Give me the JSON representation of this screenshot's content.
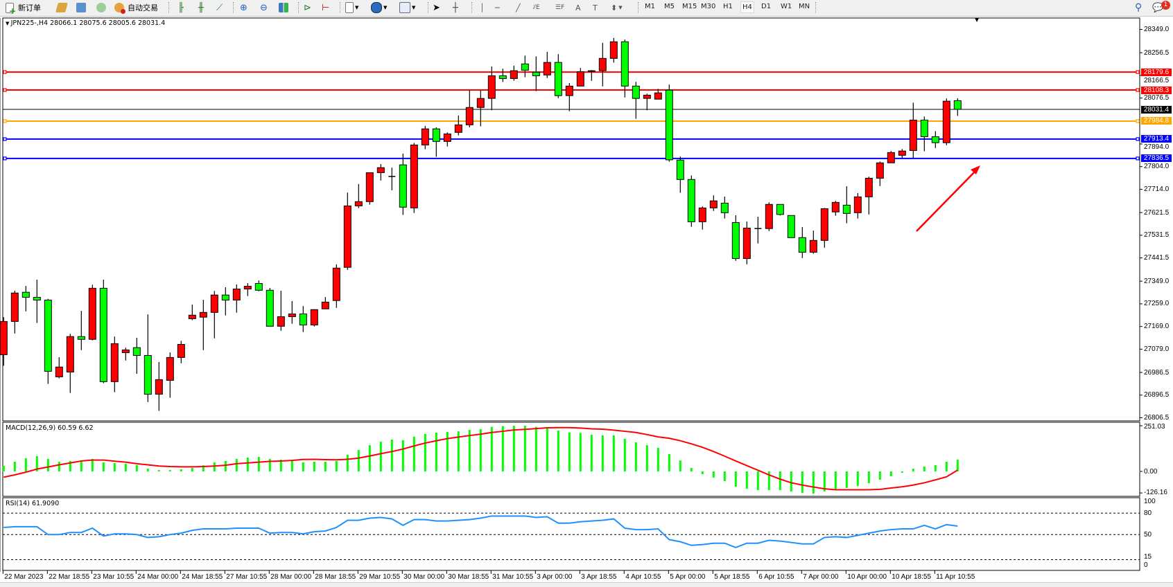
{
  "toolbar": {
    "new_order_label": "新订单",
    "auto_trading_label": "自动交易",
    "icons": [
      "new-order-icon",
      "gold-icon",
      "market-watch-icon",
      "signals-icon",
      "auto-trading-icon",
      "bar-chart-icon",
      "candlestick-icon",
      "line-chart-icon",
      "zoom-in-icon",
      "zoom-out-icon",
      "tile-windows-icon",
      "auto-scroll-icon",
      "chart-shift-icon",
      "new-chart-icon",
      "periods-icon",
      "templates-icon",
      "cursor-icon",
      "crosshair-icon",
      "vertical-line-icon",
      "horizontal-line-icon",
      "trendline-icon",
      "fibonacci-icon",
      "fibo-fan-icon",
      "text-icon",
      "text-label-icon",
      "arrows-icon"
    ],
    "timeframes": [
      "M1",
      "M5",
      "M15",
      "M30",
      "H1",
      "H4",
      "D1",
      "W1",
      "MN"
    ],
    "active_timeframe": "H4",
    "notification_count": "1"
  },
  "chart": {
    "title": "JPN225-,H4  28066.1 28075.6 28005.6 28031.4",
    "symbol": "JPN225-",
    "period": "H4",
    "price_ticks": [
      "28349.0",
      "28256.5",
      "28166.5",
      "28076.5",
      "27894.0",
      "27804.0",
      "27714.0",
      "27621.5",
      "27531.5",
      "27441.5",
      "27349.0",
      "27259.0",
      "27169.0",
      "27079.0",
      "26986.5",
      "26896.5",
      "26806.5"
    ],
    "current_price": {
      "value": "28031.4",
      "color": "#000000"
    },
    "level_lines": [
      {
        "value": "28179.6",
        "color": "#ff0000"
      },
      {
        "value": "28108.3",
        "color": "#ff0000"
      },
      {
        "value": "27984.8",
        "color": "#ffa500"
      },
      {
        "value": "27913.4",
        "color": "#0000ff"
      },
      {
        "value": "27836.5",
        "color": "#0000ff"
      }
    ],
    "bull_color": "#ff0000",
    "bear_color": "#00ff00",
    "annotation_arrow_color": "#ff0000",
    "time_labels": [
      "22 Mar 2023",
      "22 Mar 18:55",
      "23 Mar 10:55",
      "24 Mar 00:00",
      "24 Mar 18:55",
      "27 Mar 10:55",
      "28 Mar 00:00",
      "28 Mar 18:55",
      "29 Mar 10:55",
      "30 Mar 00:00",
      "30 Mar 18:55",
      "31 Mar 10:55",
      "3 Apr 00:00",
      "3 Apr 18:55",
      "4 Apr 10:55",
      "5 Apr 00:00",
      "5 Apr 18:55",
      "6 Apr 10:55",
      "7 Apr 00:00",
      "10 Apr 00:00",
      "10 Apr 18:55",
      "11 Apr 10:55"
    ]
  },
  "macd": {
    "title": "MACD(12,26,9) 60.59 6.62",
    "ticks": [
      "251.03",
      "0.00",
      "-126.16"
    ],
    "hist_color": "#00ff00",
    "signal_color": "#ff0000"
  },
  "rsi": {
    "title": "RSI(14) 61.9090",
    "ticks": [
      "100",
      "80",
      "50",
      "15",
      "0"
    ],
    "line_color": "#1e90ff"
  },
  "chart_data": {
    "type": "candlestick",
    "ohlc": [
      [
        27057,
        27206,
        27013,
        27189
      ],
      [
        27189,
        27311,
        27141,
        27302
      ],
      [
        27305,
        27330,
        27229,
        27285
      ],
      [
        27285,
        27355,
        27183,
        27274
      ],
      [
        27274,
        27279,
        26941,
        26991
      ],
      [
        26969,
        27047,
        26963,
        27008
      ],
      [
        26988,
        27140,
        26905,
        27129
      ],
      [
        27129,
        27231,
        27075,
        27118
      ],
      [
        27118,
        27335,
        27114,
        27321
      ],
      [
        27321,
        27355,
        26944,
        26950
      ],
      [
        26950,
        27129,
        26908,
        27101
      ],
      [
        27065,
        27085,
        27034,
        27076
      ],
      [
        27085,
        27124,
        26981,
        27054
      ],
      [
        27054,
        27217,
        26869,
        26900
      ],
      [
        26900,
        27028,
        26834,
        26958
      ],
      [
        26955,
        27066,
        26886,
        27046
      ],
      [
        27046,
        27112,
        27023,
        27098
      ],
      [
        27200,
        27256,
        27194,
        27214
      ],
      [
        27206,
        27275,
        27075,
        27225
      ],
      [
        27225,
        27310,
        27122,
        27294
      ],
      [
        27294,
        27325,
        27213,
        27274
      ],
      [
        27274,
        27336,
        27224,
        27318
      ],
      [
        27318,
        27341,
        27290,
        27329
      ],
      [
        27340,
        27352,
        27309,
        27313
      ],
      [
        27313,
        27322,
        27170,
        27170
      ],
      [
        27170,
        27311,
        27152,
        27208
      ],
      [
        27208,
        27270,
        27180,
        27219
      ],
      [
        27219,
        27250,
        27147,
        27175
      ],
      [
        27175,
        27238,
        27169,
        27236
      ],
      [
        27239,
        27286,
        27239,
        27266
      ],
      [
        27272,
        27416,
        27243,
        27401
      ],
      [
        27404,
        27701,
        27394,
        27648
      ],
      [
        27648,
        27735,
        27639,
        27665
      ],
      [
        27665,
        27780,
        27653,
        27780
      ],
      [
        27780,
        27814,
        27749,
        27800
      ],
      [
        27765,
        27800,
        27710,
        27765
      ],
      [
        27811,
        27856,
        27612,
        27643
      ],
      [
        27640,
        27898,
        27620,
        27890
      ],
      [
        27890,
        27966,
        27873,
        27954
      ],
      [
        27954,
        27960,
        27843,
        27904
      ],
      [
        27904,
        27940,
        27884,
        27934
      ],
      [
        27940,
        28007,
        27928,
        27970
      ],
      [
        27970,
        28107,
        27960,
        28039
      ],
      [
        28039,
        28107,
        27964,
        28075
      ],
      [
        28075,
        28202,
        28028,
        28165
      ],
      [
        28165,
        28193,
        28140,
        28154
      ],
      [
        28154,
        28205,
        28145,
        28185
      ],
      [
        28212,
        28245,
        28159,
        28187
      ],
      [
        28179,
        28242,
        28104,
        28165
      ],
      [
        28168,
        28260,
        28156,
        28218
      ],
      [
        28218,
        28251,
        28076,
        28086
      ],
      [
        28086,
        28136,
        28024,
        28124
      ],
      [
        28124,
        28196,
        28124,
        28181
      ],
      [
        28182,
        28188,
        28145,
        28185
      ],
      [
        28185,
        28296,
        28123,
        28234
      ],
      [
        28234,
        28315,
        28217,
        28300
      ],
      [
        28300,
        28309,
        28079,
        28124
      ],
      [
        28124,
        28141,
        27994,
        28075
      ],
      [
        28075,
        28094,
        28028,
        28088
      ],
      [
        28072,
        28113,
        28072,
        28097
      ],
      [
        28108,
        28130,
        27824,
        27831
      ],
      [
        27830,
        27844,
        27700,
        27753
      ],
      [
        27753,
        27769,
        27565,
        27585
      ],
      [
        27585,
        27646,
        27554,
        27640
      ],
      [
        27640,
        27690,
        27628,
        27668
      ],
      [
        27659,
        27685,
        27598,
        27621
      ],
      [
        27582,
        27611,
        27430,
        27439
      ],
      [
        27439,
        27586,
        27416,
        27560
      ],
      [
        27558,
        27605,
        27499,
        27558
      ],
      [
        27558,
        27662,
        27548,
        27654
      ],
      [
        27654,
        27654,
        27610,
        27614
      ],
      [
        27610,
        27610,
        27522,
        27522
      ],
      [
        27522,
        27564,
        27441,
        27464
      ],
      [
        27464,
        27550,
        27458,
        27511
      ],
      [
        27511,
        27640,
        27482,
        27637
      ],
      [
        27624,
        27668,
        27609,
        27662
      ],
      [
        27651,
        27726,
        27579,
        27618
      ],
      [
        27621,
        27699,
        27598,
        27684
      ],
      [
        27684,
        27764,
        27614,
        27758
      ],
      [
        27758,
        27824,
        27727,
        27819
      ],
      [
        27819,
        27866,
        27819,
        27860
      ],
      [
        27849,
        27874,
        27838,
        27866
      ],
      [
        27868,
        28058,
        27838,
        27989
      ],
      [
        27989,
        28003,
        27865,
        27923
      ],
      [
        27923,
        27945,
        27878,
        27899
      ],
      [
        27899,
        28075,
        27889,
        28064
      ],
      [
        28066.1,
        28075.6,
        28005.6,
        28031.4
      ]
    ],
    "ylim": [
      26806.5,
      28349.0
    ],
    "macd_hist": [
      29,
      50,
      68,
      79,
      65,
      50,
      54,
      50,
      65,
      47,
      43,
      40,
      32,
      14,
      7,
      7,
      11,
      18,
      32,
      47,
      54,
      65,
      72,
      75,
      65,
      61,
      54,
      47,
      50,
      50,
      54,
      86,
      111,
      136,
      154,
      165,
      162,
      180,
      194,
      201,
      205,
      208,
      215,
      219,
      231,
      235,
      237,
      237,
      231,
      225,
      212,
      202,
      199,
      190,
      187,
      187,
      169,
      151,
      136,
      122,
      90,
      57,
      18,
      -14,
      -32,
      -50,
      -79,
      -90,
      -97,
      -97,
      -97,
      -104,
      -111,
      -115,
      -104,
      -97,
      -86,
      -75,
      -61,
      -43,
      -25,
      -7,
      14,
      25,
      32,
      50,
      60.59
    ],
    "macd_signal": [
      -30,
      -18,
      -4,
      12,
      23,
      34,
      44,
      54,
      59,
      59,
      53,
      48,
      40,
      34,
      28,
      25,
      24,
      24,
      25,
      28,
      32,
      40,
      44,
      48,
      52,
      54,
      57,
      62,
      63,
      61,
      60,
      63,
      69,
      80,
      92,
      103,
      116,
      132,
      147,
      159,
      170,
      178,
      186,
      193,
      202,
      208,
      215,
      218,
      222,
      226,
      227,
      227,
      225,
      221,
      219,
      214,
      208,
      202,
      191,
      179,
      172,
      159,
      143,
      125,
      103,
      79,
      54,
      30,
      6,
      -18,
      -40,
      -59,
      -71,
      -81,
      -90,
      -95,
      -95,
      -95,
      -95,
      -93,
      -86,
      -80,
      -71,
      -59,
      -44,
      -28,
      6.62
    ],
    "macd_ylim": [
      -126.16,
      251.03
    ],
    "rsi": [
      60,
      61,
      61,
      61,
      50,
      50,
      53,
      53,
      59,
      48,
      51,
      51,
      50,
      46,
      47,
      50,
      52,
      56,
      58,
      58,
      58,
      59,
      59,
      59,
      52,
      53,
      53,
      51,
      54,
      55,
      60,
      70,
      70,
      73,
      74,
      72,
      63,
      71,
      71,
      69,
      69,
      70,
      71,
      73,
      76,
      76,
      76,
      76,
      74,
      75,
      66,
      66,
      68,
      69,
      70,
      72,
      59,
      57,
      57,
      58,
      43,
      40,
      35,
      36,
      38,
      38,
      32,
      38,
      38,
      42,
      41,
      39,
      37,
      37,
      46,
      47,
      46,
      49,
      52,
      55,
      57,
      58,
      58,
      63,
      58,
      64,
      61.909
    ],
    "rsi_levels": [
      80,
      50,
      15
    ],
    "rsi_ylim": [
      0,
      100
    ]
  }
}
